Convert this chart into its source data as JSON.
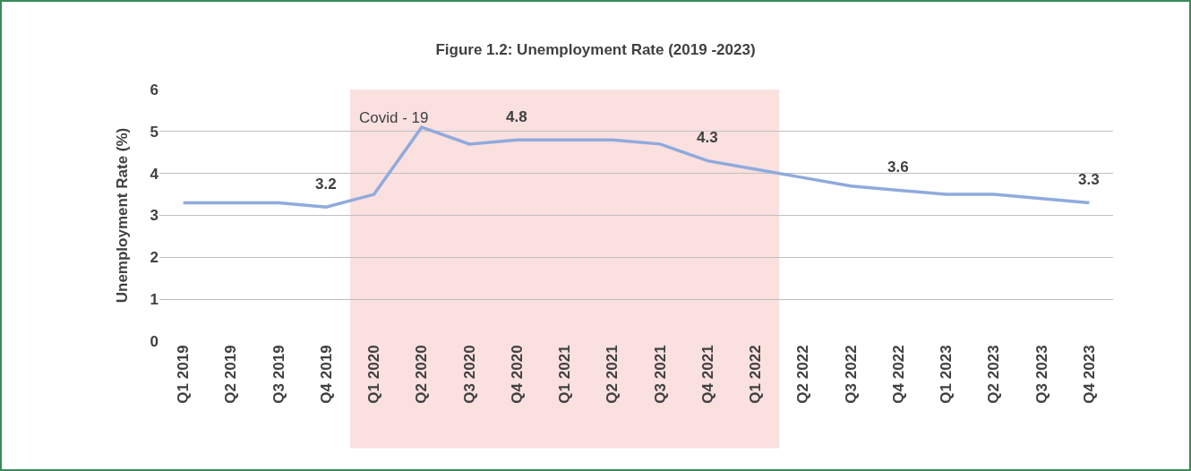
{
  "chart_data": {
    "type": "line",
    "title": "Figure 1.2: Unemployment Rate (2019 -2023)",
    "ylabel": "Unemployment Rate (%)",
    "categories": [
      "Q1 2019",
      "Q2 2019",
      "Q3 2019",
      "Q4 2019",
      "Q1 2020",
      "Q2 2020",
      "Q3 2020",
      "Q4 2020",
      "Q1 2021",
      "Q2 2021",
      "Q3 2021",
      "Q4 2021",
      "Q1 2022",
      "Q2 2022",
      "Q3 2022",
      "Q4 2022",
      "Q1 2023",
      "Q2 2023",
      "Q3 2023",
      "Q4 2023"
    ],
    "series": [
      {
        "color": "#8faadc",
        "values": [
          3.3,
          3.3,
          3.3,
          3.2,
          3.5,
          5.1,
          4.7,
          4.8,
          4.8,
          4.8,
          4.7,
          4.3,
          4.1,
          3.9,
          3.7,
          3.6,
          3.5,
          3.5,
          3.4,
          3.3
        ],
        "value_labels": [
          null,
          null,
          null,
          "3.2",
          null,
          null,
          null,
          "4.8",
          null,
          null,
          null,
          "4.3",
          null,
          null,
          null,
          "3.6",
          null,
          null,
          null,
          "3.3"
        ]
      }
    ],
    "ylim": [
      0,
      6
    ],
    "yticks": [
      0,
      1,
      2,
      3,
      4,
      5,
      6
    ],
    "grid": "y",
    "legend": false,
    "marker": "none",
    "line_style": "solid",
    "bands": [
      {
        "axis": "x",
        "from": "Q1 2020",
        "to": "Q1 2022",
        "label": "Covid - 19",
        "color": "#fbe0e0"
      }
    ]
  }
}
